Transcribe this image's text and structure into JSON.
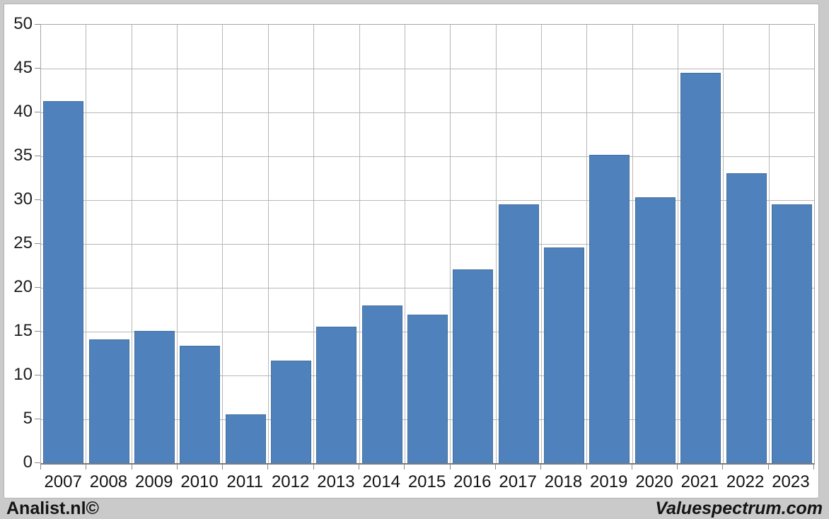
{
  "footer": {
    "left_text": "Analist.nl©",
    "right_text": "Valuespectrum.com"
  },
  "chart_data": {
    "type": "bar",
    "title": "",
    "xlabel": "",
    "ylabel": "",
    "categories": [
      "2007",
      "2008",
      "2009",
      "2010",
      "2011",
      "2012",
      "2013",
      "2014",
      "2015",
      "2016",
      "2017",
      "2018",
      "2019",
      "2020",
      "2021",
      "2022",
      "2023"
    ],
    "values": [
      41.3,
      14.1,
      15.1,
      13.4,
      5.6,
      11.7,
      15.6,
      18.0,
      16.9,
      22.1,
      29.5,
      24.6,
      35.2,
      30.3,
      44.5,
      33.1,
      29.5
    ],
    "ylim": [
      0,
      50
    ],
    "yticks": [
      0,
      5,
      10,
      15,
      20,
      25,
      30,
      35,
      40,
      45,
      50
    ],
    "grid": true,
    "legend": false,
    "bar_color": "#4f81bd",
    "bar_border_color": "#44709d",
    "gridline_color": "#b8b8b8",
    "plot_border_color": "#a6a6a6",
    "axis_line_color": "#7a7a7a",
    "panel_background": "#ffffff",
    "page_background": "#cacaca"
  }
}
